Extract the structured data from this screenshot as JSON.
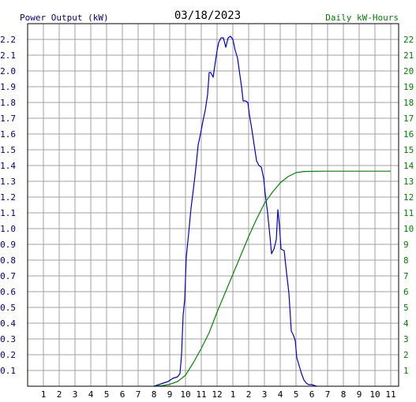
{
  "chart_data": {
    "type": "line",
    "title": "03/18/2023",
    "left_axis_label": "Power Output (kW)",
    "right_axis_label": "Daily kW-Hours",
    "x_tick_labels": [
      "1",
      "2",
      "3",
      "4",
      "5",
      "6",
      "7",
      "8",
      "9",
      "10",
      "11",
      "12",
      "1",
      "2",
      "3",
      "4",
      "5",
      "6",
      "7",
      "8",
      "9",
      "10",
      "11"
    ],
    "y_left": {
      "min": 0,
      "max": 2.3,
      "ticks": [
        "0.1",
        "0.2",
        "0.3",
        "0.4",
        "0.5",
        "0.6",
        "0.7",
        "0.8",
        "0.9",
        "1.0",
        "1.1",
        "1.2",
        "1.3",
        "1.4",
        "1.5",
        "1.6",
        "1.7",
        "1.8",
        "1.9",
        "2.0",
        "2.1",
        "2.2"
      ]
    },
    "y_right": {
      "min": 0,
      "max": 23,
      "ticks": [
        "1",
        "2",
        "3",
        "4",
        "5",
        "6",
        "7",
        "8",
        "9",
        "10",
        "11",
        "12",
        "13",
        "14",
        "15",
        "16",
        "17",
        "18",
        "19",
        "20",
        "21",
        "22"
      ]
    },
    "grid": true,
    "colors": {
      "power": "#0000cc",
      "energy": "#008800",
      "grid": "#a0a0a0",
      "left_text": "#000080",
      "right_text": "#008000"
    },
    "series": [
      {
        "axis": "left",
        "color": "#0000cc",
        "points": [
          [
            8.0,
            0.0
          ],
          [
            8.3,
            0.01
          ],
          [
            8.6,
            0.02
          ],
          [
            8.9,
            0.03
          ],
          [
            9.2,
            0.05
          ],
          [
            9.5,
            0.06
          ],
          [
            9.65,
            0.08
          ],
          [
            9.75,
            0.2
          ],
          [
            9.85,
            0.45
          ],
          [
            9.95,
            0.55
          ],
          [
            10.05,
            0.82
          ],
          [
            10.2,
            0.97
          ],
          [
            10.35,
            1.13
          ],
          [
            10.5,
            1.25
          ],
          [
            10.65,
            1.38
          ],
          [
            10.8,
            1.53
          ],
          [
            10.95,
            1.6
          ],
          [
            11.1,
            1.68
          ],
          [
            11.25,
            1.75
          ],
          [
            11.4,
            1.85
          ],
          [
            11.5,
            1.99
          ],
          [
            11.6,
            1.99
          ],
          [
            11.75,
            1.96
          ],
          [
            11.85,
            2.03
          ],
          [
            12.0,
            2.13
          ],
          [
            12.1,
            2.18
          ],
          [
            12.25,
            2.21
          ],
          [
            12.4,
            2.21
          ],
          [
            12.55,
            2.15
          ],
          [
            12.7,
            2.21
          ],
          [
            12.85,
            2.22
          ],
          [
            13.0,
            2.2
          ],
          [
            13.15,
            2.13
          ],
          [
            13.3,
            2.08
          ],
          [
            13.45,
            1.97
          ],
          [
            13.55,
            1.9
          ],
          [
            13.65,
            1.81
          ],
          [
            13.8,
            1.81
          ],
          [
            13.95,
            1.8
          ],
          [
            14.05,
            1.72
          ],
          [
            14.2,
            1.63
          ],
          [
            14.35,
            1.53
          ],
          [
            14.5,
            1.43
          ],
          [
            14.65,
            1.4
          ],
          [
            14.8,
            1.39
          ],
          [
            14.95,
            1.32
          ],
          [
            15.05,
            1.22
          ],
          [
            15.2,
            1.1
          ],
          [
            15.35,
            0.95
          ],
          [
            15.45,
            0.84
          ],
          [
            15.6,
            0.87
          ],
          [
            15.75,
            0.93
          ],
          [
            15.85,
            1.12
          ],
          [
            15.95,
            1.02
          ],
          [
            16.05,
            0.87
          ],
          [
            16.25,
            0.86
          ],
          [
            16.4,
            0.72
          ],
          [
            16.55,
            0.59
          ],
          [
            16.7,
            0.35
          ],
          [
            16.85,
            0.32
          ],
          [
            16.95,
            0.29
          ],
          [
            17.05,
            0.18
          ],
          [
            17.2,
            0.13
          ],
          [
            17.35,
            0.08
          ],
          [
            17.5,
            0.04
          ],
          [
            17.65,
            0.02
          ],
          [
            17.8,
            0.01
          ],
          [
            18.0,
            0.01
          ],
          [
            18.3,
            0.0
          ]
        ]
      },
      {
        "axis": "right",
        "color": "#008800",
        "points": [
          [
            8.0,
            0.0
          ],
          [
            8.5,
            0.03
          ],
          [
            9.0,
            0.12
          ],
          [
            9.5,
            0.3
          ],
          [
            10.0,
            0.7
          ],
          [
            10.5,
            1.5
          ],
          [
            11.0,
            2.4
          ],
          [
            11.5,
            3.4
          ],
          [
            12.0,
            4.7
          ],
          [
            12.5,
            5.9
          ],
          [
            13.0,
            7.1
          ],
          [
            13.5,
            8.3
          ],
          [
            14.0,
            9.5
          ],
          [
            14.5,
            10.6
          ],
          [
            15.0,
            11.6
          ],
          [
            15.5,
            12.3
          ],
          [
            16.0,
            12.9
          ],
          [
            16.5,
            13.3
          ],
          [
            17.0,
            13.55
          ],
          [
            17.5,
            13.62
          ],
          [
            18.0,
            13.63
          ],
          [
            19.0,
            13.64
          ],
          [
            23.0,
            13.64
          ]
        ]
      }
    ]
  }
}
